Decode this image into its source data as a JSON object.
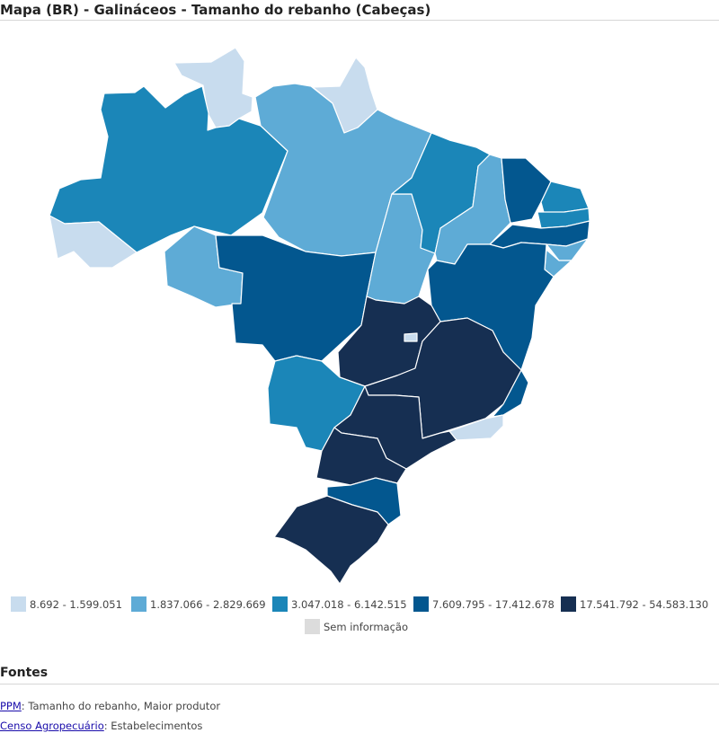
{
  "header": {
    "title": "Mapa (BR) - Galináceos - Tamanho do rebanho (Cabeças)"
  },
  "colors": {
    "c1": "#c8dcee",
    "c2": "#5eabd6",
    "c3": "#1b86b8",
    "c4": "#03578f",
    "c5": "#162f52",
    "na": "#dcdcdc"
  },
  "legend": {
    "items": [
      {
        "label": "8.692 - 1.599.051",
        "class": 1
      },
      {
        "label": "1.837.066 - 2.829.669",
        "class": 2
      },
      {
        "label": "3.047.018 - 6.142.515",
        "class": 3
      },
      {
        "label": "7.609.795 - 17.412.678",
        "class": 4
      },
      {
        "label": "17.541.792 - 54.583.130",
        "class": 5
      }
    ],
    "no_data": "Sem informação"
  },
  "map_data": {
    "states": [
      {
        "name": "RR",
        "class": 1
      },
      {
        "name": "AP",
        "class": 1
      },
      {
        "name": "AM",
        "class": 3
      },
      {
        "name": "PA",
        "class": 2
      },
      {
        "name": "AC",
        "class": 1
      },
      {
        "name": "RO",
        "class": 2
      },
      {
        "name": "MT",
        "class": 4
      },
      {
        "name": "TO",
        "class": 2
      },
      {
        "name": "MA",
        "class": 3
      },
      {
        "name": "PI",
        "class": 2
      },
      {
        "name": "CE",
        "class": 4
      },
      {
        "name": "RN",
        "class": 3
      },
      {
        "name": "PB",
        "class": 3
      },
      {
        "name": "PE",
        "class": 4
      },
      {
        "name": "AL",
        "class": 2
      },
      {
        "name": "SE",
        "class": 2
      },
      {
        "name": "BA",
        "class": 4
      },
      {
        "name": "GO",
        "class": 5
      },
      {
        "name": "DF",
        "class": 1
      },
      {
        "name": "MS",
        "class": 3
      },
      {
        "name": "MG",
        "class": 5
      },
      {
        "name": "ES",
        "class": 4
      },
      {
        "name": "RJ",
        "class": 1
      },
      {
        "name": "SP",
        "class": 5
      },
      {
        "name": "PR",
        "class": 5
      },
      {
        "name": "SC",
        "class": 4
      },
      {
        "name": "RS",
        "class": 5
      }
    ]
  },
  "sources": {
    "heading": "Fontes",
    "items": [
      {
        "link": "PPM",
        "text": ": Tamanho do rebanho, Maior produtor"
      },
      {
        "link": "Censo Agropecuário",
        "text": ": Estabelecimentos"
      }
    ]
  }
}
